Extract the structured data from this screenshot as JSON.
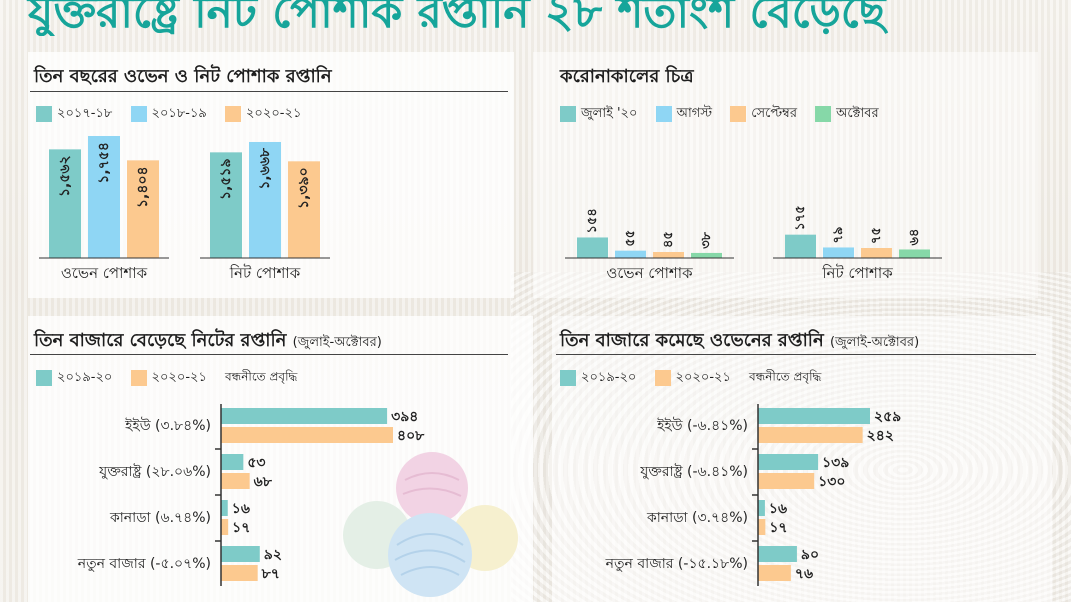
{
  "headline": "যুক্তরাষ্ট্রে নিট পোশাক রপ্তানি ২৮ শতাংশ বেড়েছে",
  "colors": {
    "teal": "#7ecbc8",
    "sky": "#8fd6f4",
    "peach": "#fcc98f",
    "green": "#86d8a8",
    "accent": "#16a59a"
  },
  "panel1": {
    "title": "তিন বছরের ওভেন ও নিট পোশাক রপ্তানি",
    "legend": [
      "২০১৭-১৮",
      "২০১৮-১৯",
      "২০২০-২১"
    ]
  },
  "panel2": {
    "title": "করোনাকালের চিত্র",
    "legend": [
      "জুলাই '২০",
      "আগস্ট",
      "সেপ্টেম্বর",
      "অক্টোবর"
    ]
  },
  "panel3": {
    "title": "তিন বাজারে বেড়েছে নিটের রপ্তানি",
    "subtitle": "(জুলাই-অক্টোবর)",
    "legend": [
      "২০১৯-২০",
      "২০২০-২১"
    ],
    "legend_note": "বন্ধনীতে প্রবৃদ্ধি"
  },
  "panel4": {
    "title": "তিন বাজারে কমেছে ওভেনের রপ্তানি",
    "subtitle": "(জুলাই-অক্টোবর)",
    "legend": [
      "২০১৯-২০",
      "২০২০-২১"
    ],
    "legend_note": "বন্ধনীতে প্রবৃদ্ধি"
  },
  "chart_data": [
    {
      "type": "bar",
      "categories": [
        "ওভেন পোশাক",
        "নিট পোশাক"
      ],
      "series": [
        {
          "name": "২০১৭-১৮",
          "values": [
            1562,
            1519
          ],
          "labels": [
            "১,৫৬২",
            "১,৫১৯"
          ]
        },
        {
          "name": "২০১৮-১৯",
          "values": [
            1754,
            1668
          ],
          "labels": [
            "১,৭৫৪",
            "১,৬৬৮"
          ]
        },
        {
          "name": "২০২০-২১",
          "values": [
            1404,
            1390
          ],
          "labels": [
            "১,৪০৪",
            "১,৩৯০"
          ]
        }
      ]
    },
    {
      "type": "bar",
      "categories": [
        "ওভেন পোশাক",
        "নিট পোশাক"
      ],
      "series": [
        {
          "name": "জুলাই '২০",
          "values": [
            154,
            175
          ],
          "labels": [
            "১৫৪",
            "১৭৫"
          ]
        },
        {
          "name": "আগস্ট",
          "values": [
            55,
            79
          ],
          "labels": [
            "৫৫",
            "৭৯"
          ]
        },
        {
          "name": "সেপ্টেম্বর",
          "values": [
            45,
            75
          ],
          "labels": [
            "৪৫",
            "৭৫"
          ]
        },
        {
          "name": "অক্টোবর",
          "values": [
            38,
            64
          ],
          "labels": [
            "৩৮",
            "৬৪"
          ]
        }
      ]
    },
    {
      "type": "bar",
      "orientation": "horizontal",
      "categories": [
        "ইইউ (৩.৮৪%)",
        "যুক্তরাষ্ট্র (২৮.০৬%)",
        "কানাডা (৬.৭৪%)",
        "নতুন বাজার (-৫.০৭%)"
      ],
      "series": [
        {
          "name": "২০১৯-২০",
          "values": [
            394,
            53,
            16,
            92
          ],
          "labels": [
            "৩৯৪",
            "৫৩",
            "১৬",
            "৯২"
          ]
        },
        {
          "name": "২০২০-২১",
          "values": [
            408,
            68,
            17,
            87
          ],
          "labels": [
            "৪০৮",
            "৬৮",
            "১৭",
            "৮৭"
          ]
        }
      ]
    },
    {
      "type": "bar",
      "orientation": "horizontal",
      "categories": [
        "ইইউ (-৬.৪১%)",
        "যুক্তরাষ্ট্র (-৬.৪১%)",
        "কানাডা (৩.৭৪%)",
        "নতুন বাজার (-১৫.১৮%)"
      ],
      "series": [
        {
          "name": "২০১৯-২০",
          "values": [
            259,
            139,
            16,
            90
          ],
          "labels": [
            "২৫৯",
            "১৩৯",
            "১৬",
            "৯০"
          ]
        },
        {
          "name": "২০২০-২১",
          "values": [
            242,
            130,
            17,
            76
          ],
          "labels": [
            "২৪২",
            "১৩০",
            "১৭",
            "৭৬"
          ]
        }
      ]
    }
  ]
}
